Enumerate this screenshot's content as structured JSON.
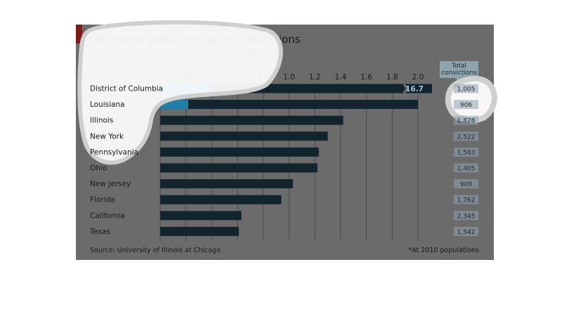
{
  "colors": {
    "panel": "#6b6b6b",
    "bar_dark": "#12242e",
    "bar_highlight": "#1f7fa6",
    "grid": "#4a4a4a",
    "total_box": "#8fa3ad",
    "label": "#1a1a1a",
    "annotation_white": "#ffffff"
  },
  "header": {
    "title": "US federal public corruption convictions",
    "subtitle": "Convictions per 10,000 population*, 1976-2010",
    "total_label_line1": "Total",
    "total_label_line2": "convictions"
  },
  "footer": {
    "source": "Source: University of Illinois at Chicago",
    "footnote": "*At 2010 populations"
  },
  "chart_data": {
    "type": "bar",
    "orientation": "horizontal",
    "title": "US federal public corruption convictions",
    "subtitle": "Convictions per 10,000 population*, 1976-2010",
    "xlabel": "",
    "ylabel": "",
    "xlim": [
      0,
      2.2
    ],
    "xticks": [
      "0",
      "0.2",
      "0.4",
      "0.6",
      "0.8",
      "1.0",
      "1.2",
      "1.4",
      "1.6",
      "1.8",
      "2.0"
    ],
    "grid": true,
    "categories": [
      "District of Columbia",
      "Louisiana",
      "Illinois",
      "New York",
      "Pennsylvania",
      "Ohio",
      "New Jersey",
      "Florida",
      "California",
      "Texas"
    ],
    "values": [
      16.7,
      2.0,
      1.42,
      1.3,
      1.23,
      1.22,
      1.03,
      0.94,
      0.63,
      0.61
    ],
    "value_labels": [
      "16.7",
      "",
      "",
      "",
      "",
      "",
      "",
      "",
      "",
      ""
    ],
    "highlighted": [
      true,
      true,
      false,
      false,
      false,
      false,
      false,
      false,
      false,
      false
    ],
    "axis_break": [
      true,
      false,
      false,
      false,
      false,
      false,
      false,
      false,
      false,
      false
    ],
    "total_convictions": [
      "1,005",
      "906",
      "1,828",
      "2,522",
      "1,563",
      "1,405",
      "909",
      "1,762",
      "2,345",
      "1,542"
    ]
  }
}
